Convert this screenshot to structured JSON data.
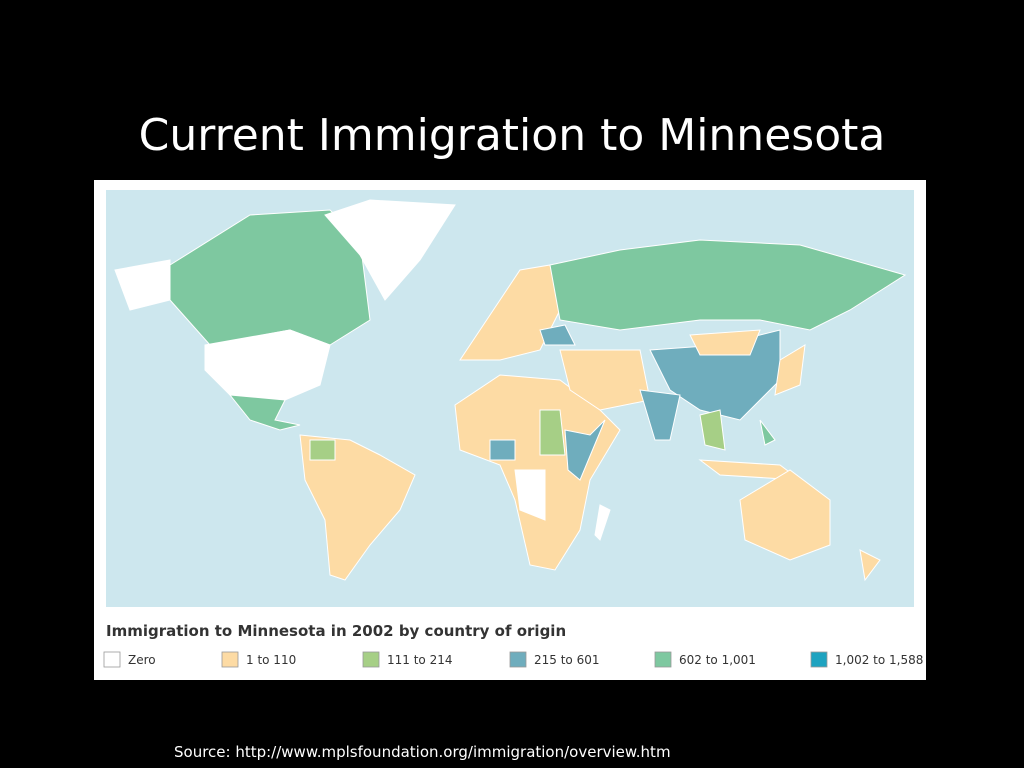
{
  "title": "Current Immigration to Minnesota",
  "map": {
    "legend_title": "Immigration to Minnesota in 2002 by country of origin",
    "legend": [
      {
        "label": "Zero",
        "color": "#ffffff"
      },
      {
        "label": "1 to 110",
        "color": "#fddba4"
      },
      {
        "label": "111 to 214",
        "color": "#a6cf86"
      },
      {
        "label": "215 to 601",
        "color": "#6fadbd"
      },
      {
        "label": "602 to 1,001",
        "color": "#7ec8a0"
      },
      {
        "label": "1,002 to 1,588",
        "color": "#1ea3c0"
      }
    ]
  },
  "source": "Source:  http://www.mplsfoundation.org/immigration/overview.htm"
}
